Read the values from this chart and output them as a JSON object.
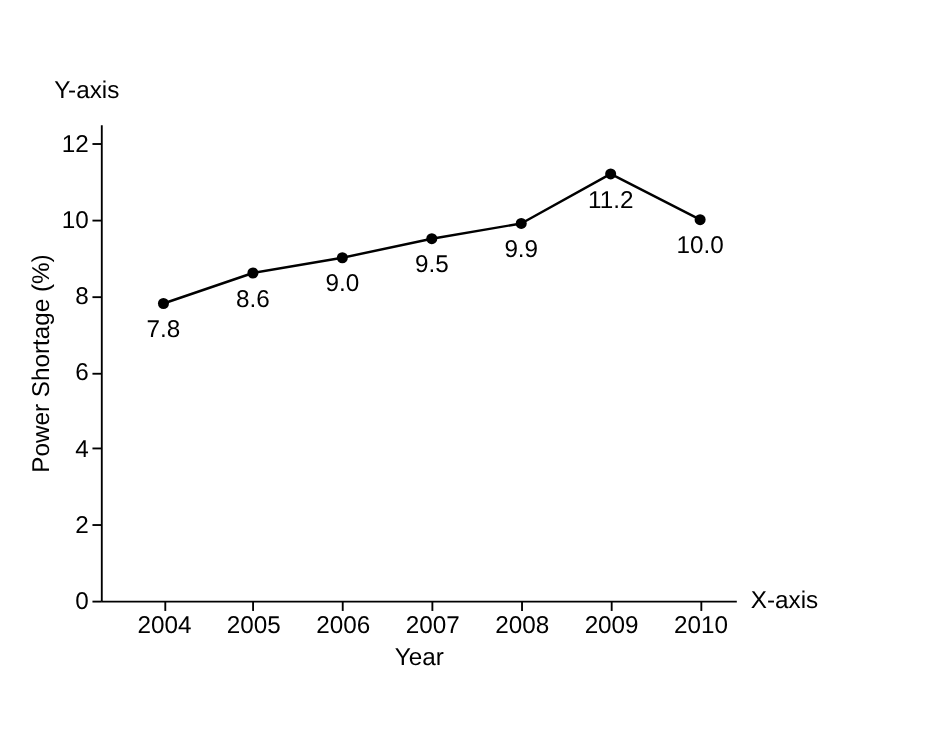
{
  "chart_data": {
    "type": "line",
    "x": [
      2004,
      2005,
      2006,
      2007,
      2008,
      2009,
      2010
    ],
    "series": [
      {
        "color": "#000000",
        "values": [
          7.8,
          8.6,
          9.0,
          9.5,
          9.9,
          11.2,
          10.0
        ],
        "value_labels": [
          "7.8",
          "8.6",
          "9.0",
          "9.5",
          "9.9",
          "11.2",
          "10.0"
        ]
      }
    ],
    "xlim": [
      2003.3,
      2010.4
    ],
    "xticks": [
      2004,
      2005,
      2006,
      2007,
      2008,
      2009,
      2010
    ],
    "ylim": [
      0,
      12.5
    ],
    "yticks": [
      0,
      2,
      4,
      6,
      8,
      10,
      12
    ],
    "xlabel": "Year",
    "ylabel": "Power Shortage (%)",
    "annotations": [
      "Y-axis",
      "X-axis"
    ],
    "marker": "circle",
    "line_style": "solid",
    "grid": false
  }
}
